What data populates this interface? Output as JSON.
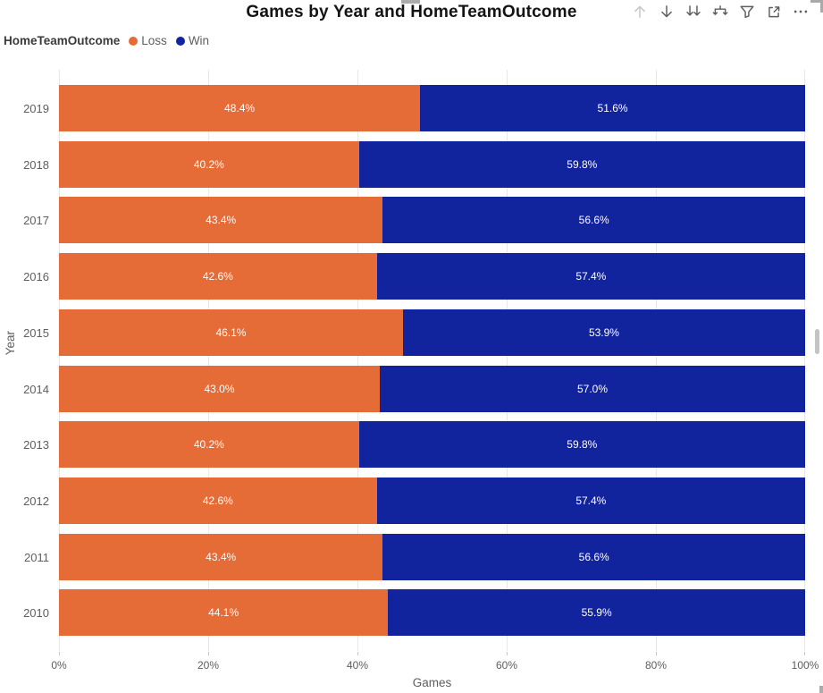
{
  "header": {
    "title": "Games by Year and HomeTeamOutcome",
    "toolbar_items": [
      {
        "name": "drill-up",
        "tooltip": "Drill up",
        "enabled": false
      },
      {
        "name": "drill-down",
        "tooltip": "Drill down",
        "enabled": true
      },
      {
        "name": "next-level",
        "tooltip": "Go to the next level in the hierarchy",
        "enabled": true
      },
      {
        "name": "expand-all",
        "tooltip": "Expand all down one level in the hierarchy",
        "enabled": true
      },
      {
        "name": "filter",
        "tooltip": "Filters",
        "enabled": true
      },
      {
        "name": "focus-mode",
        "tooltip": "Focus mode",
        "enabled": true
      },
      {
        "name": "more-options",
        "tooltip": "More options",
        "enabled": true
      }
    ]
  },
  "legend": {
    "title": "HomeTeamOutcome",
    "items": [
      {
        "label": "Loss",
        "color": "#E66C37"
      },
      {
        "label": "Win",
        "color": "#12239E"
      }
    ]
  },
  "chart_data": {
    "type": "bar",
    "orientation": "horizontal",
    "stacked": "100%",
    "title": "Games by Year and HomeTeamOutcome",
    "categories": [
      "2019",
      "2018",
      "2017",
      "2016",
      "2015",
      "2014",
      "2013",
      "2012",
      "2011",
      "2010"
    ],
    "series": [
      {
        "name": "Loss",
        "color": "#E66C37",
        "values": [
          48.4,
          40.2,
          43.4,
          42.6,
          46.1,
          43.0,
          40.2,
          42.6,
          43.4,
          44.1
        ]
      },
      {
        "name": "Win",
        "color": "#12239E",
        "values": [
          51.6,
          59.8,
          56.6,
          57.4,
          53.9,
          57.0,
          59.8,
          57.4,
          56.6,
          55.9
        ]
      }
    ],
    "data_label_format": "0.0%",
    "data_label_color": "#FFFFFF",
    "xlabel": "Games",
    "ylabel": "Year",
    "x_ticks": [
      "0%",
      "20%",
      "40%",
      "60%",
      "80%",
      "100%"
    ],
    "x_tick_pcts": [
      0,
      20,
      40,
      60,
      80,
      100
    ],
    "xlim": [
      0,
      100
    ],
    "grid": true,
    "legend_position": "top-left"
  }
}
